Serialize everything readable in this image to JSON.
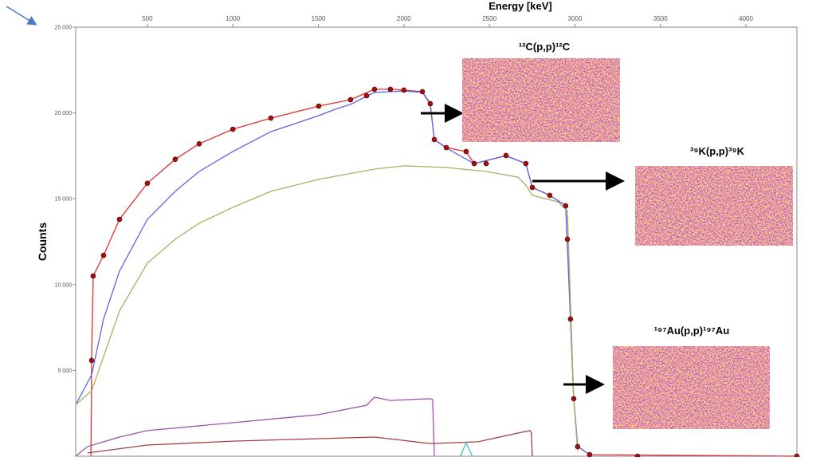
{
  "chart_data": {
    "type": "line",
    "title": "Energy [keV]",
    "y_label": "Counts",
    "xlim": [
      81,
      4298
    ],
    "xticks": [
      500,
      1000,
      1500,
      2000,
      2500,
      3000,
      3500,
      4000
    ],
    "ylim": [
      0,
      25000
    ],
    "yticks": [
      {
        "value": 5000,
        "label": "5 000"
      },
      {
        "value": 10000,
        "label": "10 000"
      },
      {
        "value": 15000,
        "label": "15 000"
      },
      {
        "value": 20000,
        "label": "20 000"
      },
      {
        "value": 25000,
        "label": "25 000"
      }
    ],
    "series": [
      {
        "style": "points",
        "color": "#a01010",
        "x": [
          174,
          183,
          244,
          337,
          500,
          663,
          803,
          1000,
          1222,
          1502,
          1688,
          1782,
          1828,
          1921,
          2000,
          2108,
          2154,
          2178,
          2248,
          2364,
          2411,
          2481,
          2597,
          2713,
          2751,
          2853,
          2946,
          2956,
          2974,
          2993,
          3016,
          3086,
          3366,
          4298
        ],
        "values": [
          5580,
          10500,
          11700,
          13800,
          15900,
          17300,
          18200,
          19050,
          19700,
          20400,
          20770,
          21000,
          21380,
          21380,
          21330,
          21240,
          20540,
          18450,
          17980,
          17750,
          17050,
          17050,
          17520,
          17050,
          15660,
          15200,
          14590,
          12640,
          7990,
          3350,
          560,
          90,
          0,
          0
        ]
      },
      {
        "style": "line",
        "color": "#e03030",
        "x": [
          170,
          174,
          183,
          244,
          337,
          500,
          663,
          803,
          1000,
          1222,
          1502,
          1688,
          1828,
          1921,
          2000,
          2108,
          2154,
          2178,
          2248,
          2364,
          2411,
          2597,
          2713,
          2751,
          2853,
          2946,
          2974,
          2993,
          3016,
          3086,
          4298
        ],
        "values": [
          0,
          5580,
          10500,
          11700,
          13800,
          15900,
          17300,
          18200,
          19050,
          19700,
          20400,
          20770,
          21380,
          21380,
          21330,
          21240,
          20540,
          18450,
          17980,
          17750,
          17050,
          17520,
          17050,
          15660,
          15200,
          14590,
          7990,
          3350,
          560,
          90,
          0
        ]
      },
      {
        "style": "line",
        "color": "#5a66e6",
        "x": [
          81,
          174,
          244,
          337,
          500,
          663,
          803,
          1000,
          1222,
          1502,
          1595,
          1688,
          1828,
          2000,
          2108,
          2154,
          2178,
          2248,
          2411,
          2597,
          2713,
          2751,
          2853,
          2946,
          2974,
          2993,
          3016,
          3086
        ],
        "values": [
          3000,
          4740,
          8000,
          10780,
          13800,
          15430,
          16590,
          17750,
          18910,
          19840,
          20200,
          20500,
          21200,
          21280,
          21200,
          20500,
          18450,
          17950,
          17050,
          17500,
          17050,
          15660,
          15200,
          14590,
          7990,
          3350,
          560,
          90
        ]
      },
      {
        "style": "line",
        "color": "#a8b060",
        "x": [
          81,
          174,
          337,
          500,
          663,
          803,
          1000,
          1222,
          1502,
          1828,
          2000,
          2248,
          2481,
          2667,
          2713,
          2751,
          2900,
          2956,
          2993,
          3016
        ],
        "values": [
          3000,
          3810,
          8460,
          11250,
          12640,
          13570,
          14500,
          15430,
          16130,
          16730,
          16920,
          16820,
          16590,
          16260,
          15800,
          15200,
          14820,
          14300,
          3350,
          300
        ]
      },
      {
        "style": "line",
        "color": "#a050b0",
        "x": [
          81,
          150,
          337,
          500,
          1000,
          1502,
          1782,
          1828,
          1921,
          2154,
          2168,
          2178
        ],
        "values": [
          0,
          560,
          1115,
          1490,
          1950,
          2420,
          2970,
          3440,
          3250,
          3350,
          3300,
          0
        ]
      },
      {
        "style": "line",
        "color": "#a04040",
        "x": [
          150,
          500,
          1000,
          1502,
          1828,
          2154,
          2434,
          2620,
          2737,
          2745,
          2751
        ],
        "values": [
          190,
          650,
          880,
          1020,
          1115,
          740,
          840,
          1250,
          1490,
          1400,
          0
        ]
      },
      {
        "style": "line",
        "color": "#40c0c0",
        "x": [
          2330,
          2364,
          2400
        ],
        "values": [
          0,
          790,
          0
        ]
      }
    ],
    "annotations": [
      "¹²C(p,p)¹²C",
      "³⁹K(p,p)³⁹K",
      "¹⁹⁷Au(p,p)¹⁹⁷Au"
    ]
  }
}
